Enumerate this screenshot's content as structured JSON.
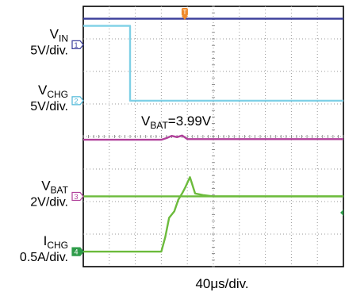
{
  "chart_data": {
    "type": "line",
    "x_divisions": 10,
    "y_divisions": 8,
    "grid": true,
    "time_scale": "40μs/div.",
    "annotation": {
      "text_main": "V",
      "text_sub": "BAT",
      "text_rest": "=3.99V"
    },
    "trigger_position_div": 3.9,
    "channels": [
      {
        "id": "1",
        "name_main": "V",
        "name_sub": "IN",
        "scale": "5V/div.",
        "color": "#3a3d9a",
        "marker_color": "#3a3d9a",
        "marker_level_div": 6.82,
        "x_div": [
          0,
          10
        ],
        "y_div": [
          7.62,
          7.62
        ]
      },
      {
        "id": "2",
        "name_main": "V",
        "name_sub": "CHG",
        "scale": "5V/div.",
        "color": "#7fd0e6",
        "marker_color": "#4fb8d8",
        "marker_level_div": 5.1,
        "x_div": [
          0,
          1.8,
          1.8,
          10
        ],
        "y_div": [
          7.4,
          7.4,
          5.1,
          5.1
        ]
      },
      {
        "id": "",
        "name_main": "",
        "name_sub": "",
        "scale": "",
        "color": "#b0409a",
        "x_div": [
          0,
          3.0,
          3.2,
          3.4,
          3.6,
          3.8,
          4.0,
          10
        ],
        "y_div": [
          3.9,
          3.9,
          3.95,
          4.02,
          3.98,
          4.03,
          3.92,
          3.92
        ]
      },
      {
        "id": "3",
        "name_main": "V",
        "name_sub": "BAT",
        "scale": "2V/div.",
        "color": "#6cbb3c",
        "marker_color": "#b0409a",
        "marker_level_div": 2.16,
        "x_div": [
          0,
          10
        ],
        "y_div": [
          2.16,
          2.16
        ]
      },
      {
        "id": "4",
        "name_main": "I",
        "name_sub": "CHG",
        "scale": "0.5A/div.",
        "color": "#6cbb3c",
        "marker_color": "#2e9c4a",
        "marker_level_div": 0.46,
        "x_div": [
          0,
          3.0,
          3.15,
          3.3,
          3.5,
          3.65,
          3.8,
          3.9,
          4.1,
          4.3,
          4.6,
          5.0,
          10
        ],
        "y_div": [
          0.46,
          0.46,
          0.9,
          1.5,
          1.7,
          2.05,
          2.25,
          2.4,
          2.75,
          2.25,
          2.2,
          2.16,
          2.16
        ]
      }
    ]
  }
}
